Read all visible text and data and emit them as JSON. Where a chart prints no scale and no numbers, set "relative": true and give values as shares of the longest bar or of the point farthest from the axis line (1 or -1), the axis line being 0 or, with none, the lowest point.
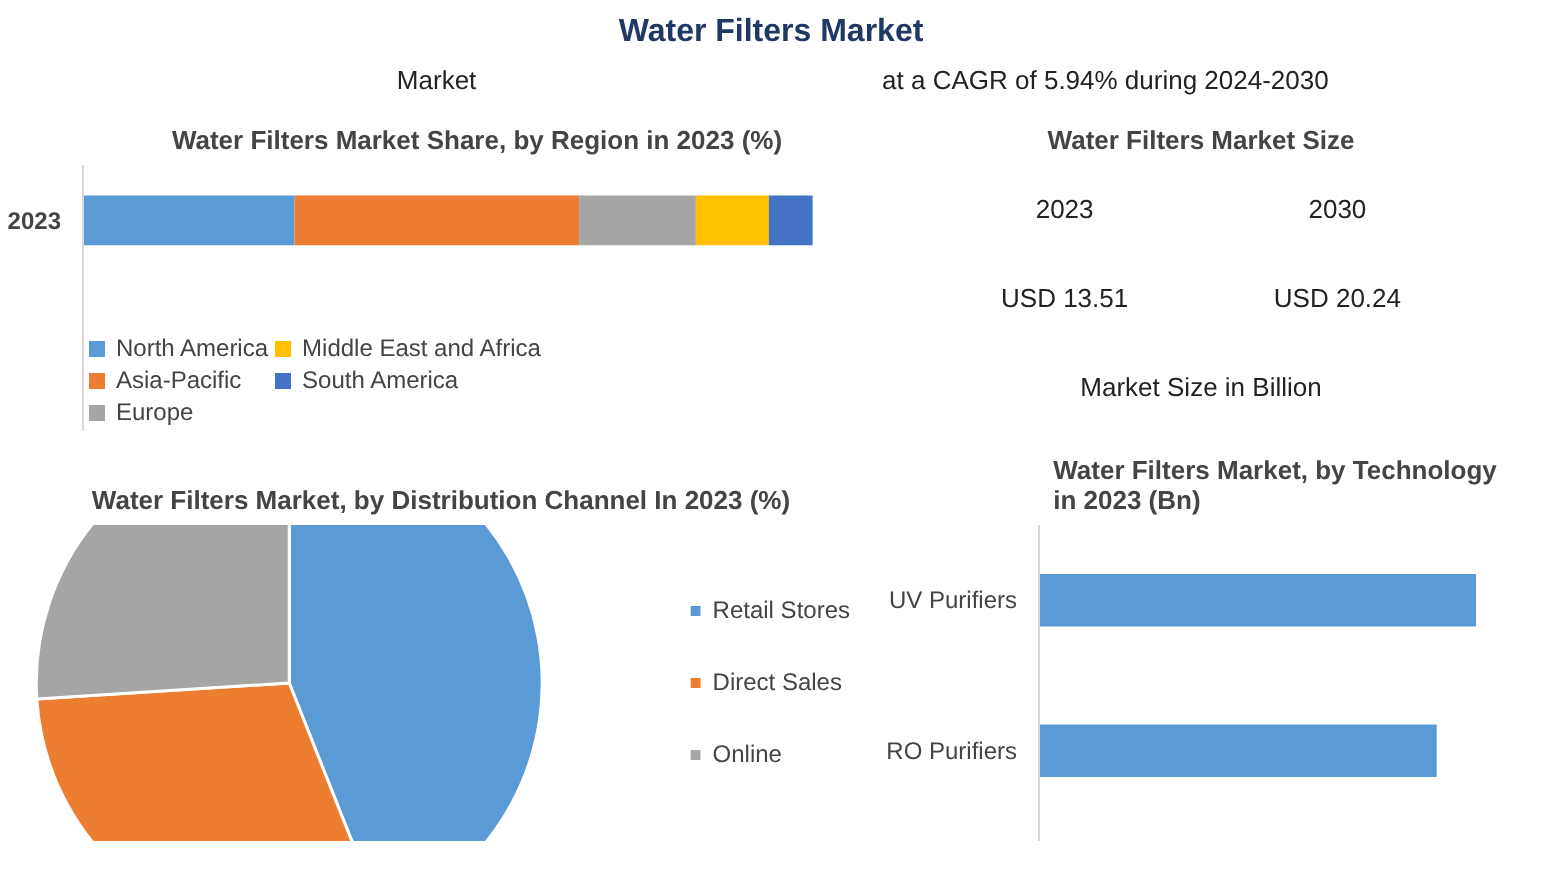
{
  "chart_data": [
    {
      "type": "other",
      "title": "Water Filters Market",
      "annotations": [
        "Market",
        "at a CAGR of 5.94% during 2024-2030"
      ]
    },
    {
      "type": "bar",
      "title": "Water Filters Market Share, by Region in 2023 (%)",
      "orientation": "horizontal",
      "stacked": true,
      "relative": true,
      "categories": [
        "2023"
      ],
      "legend": "bottom",
      "series": [
        {
          "name": "North America",
          "color": "#5b9bd5",
          "values": [
            0.29
          ]
        },
        {
          "name": "Asia-Pacific",
          "color": "#ed7d31",
          "values": [
            0.39
          ]
        },
        {
          "name": "Europe",
          "color": "#a5a5a5",
          "values": [
            0.16
          ]
        },
        {
          "name": "Middle East and Africa",
          "color": "#ffc000",
          "values": [
            0.1
          ]
        },
        {
          "name": "South America",
          "color": "#4472c4",
          "values": [
            0.06
          ]
        }
      ]
    },
    {
      "type": "other",
      "title": "Water Filters Market Size",
      "annotations": [
        "2023",
        "2030",
        "USD 13.51",
        "USD 20.24",
        "Market Size in Billion"
      ]
    },
    {
      "type": "pie",
      "title": "Water Filters Market, by Distribution Channel In 2023 (%)",
      "categories": [
        "Retail Stores",
        "Direct Sales",
        "Online"
      ],
      "values": [
        44,
        30,
        26
      ],
      "colors": [
        "#5b9bd5",
        "#ed7d31",
        "#a5a5a5"
      ],
      "legend": "right"
    },
    {
      "type": "bar",
      "title": "Water Filters Market, by Technology in 2023 (Bn)",
      "orientation": "horizontal",
      "relative": true,
      "categories": [
        "UV Purifiers",
        "RO Purifiers"
      ],
      "values": [
        1,
        0.91
      ],
      "color": "#5b9bd5"
    }
  ]
}
